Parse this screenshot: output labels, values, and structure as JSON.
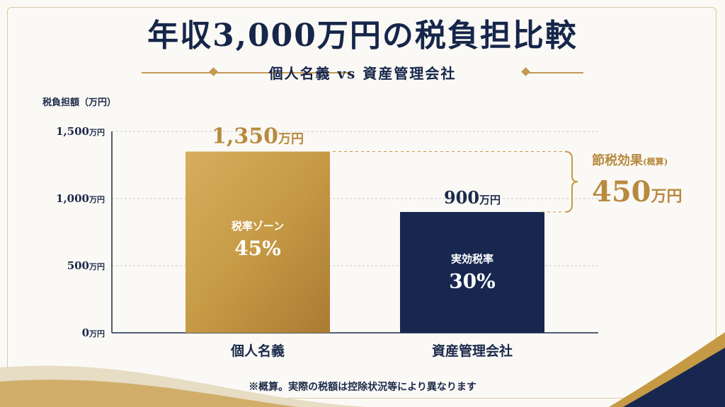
{
  "title": "年収3,000万円の税負担比較",
  "subtitle": "個人名義 vs 資産管理会社",
  "note": "※概算。実際の税額は控除状況等により異なります",
  "savings": {
    "label": "節税効果",
    "label_suffix": "(概算)",
    "value": "450",
    "unit": "万円"
  },
  "colors": {
    "gold": "#c69a45",
    "navy": "#172750",
    "accent_text": "#b88a3e",
    "axis": "#1b2a4a"
  },
  "chart_data": {
    "type": "bar",
    "ylabel": "税負担額（万円）",
    "ylim": [
      0,
      1500
    ],
    "yticks": [
      0,
      500,
      1000,
      1500
    ],
    "ytick_labels": [
      {
        "num": "0",
        "unit": "万円"
      },
      {
        "num": "500",
        "unit": "万円"
      },
      {
        "num": "1,000",
        "unit": "万円"
      },
      {
        "num": "1,500",
        "unit": "万円"
      }
    ],
    "categories": [
      "個人名義",
      "資産管理会社"
    ],
    "values": [
      1350,
      900
    ],
    "value_labels": [
      {
        "num": "1,350",
        "unit": "万円"
      },
      {
        "num": "900",
        "unit": "万円"
      }
    ],
    "bar_inner_labels": [
      {
        "line1": "税率ゾーン",
        "line2": "45%"
      },
      {
        "line1": "実効税率",
        "line2": "30%"
      }
    ],
    "grid": "dashed horizontal"
  }
}
